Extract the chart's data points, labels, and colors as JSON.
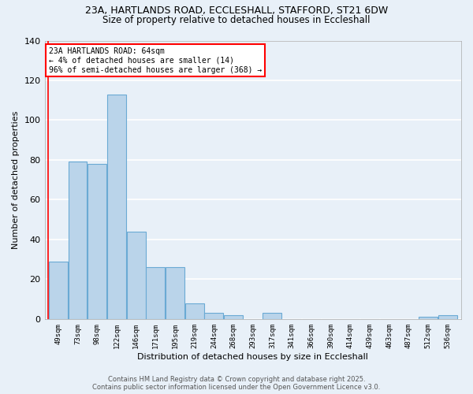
{
  "title_line1": "23A, HARTLANDS ROAD, ECCLESHALL, STAFFORD, ST21 6DW",
  "title_line2": "Size of property relative to detached houses in Eccleshall",
  "xlabel": "Distribution of detached houses by size in Eccleshall",
  "ylabel": "Number of detached properties",
  "annotation_text": "23A HARTLANDS ROAD: 64sqm\n← 4% of detached houses are smaller (14)\n96% of semi-detached houses are larger (368) →",
  "footer_line1": "Contains HM Land Registry data © Crown copyright and database right 2025.",
  "footer_line2": "Contains public sector information licensed under the Open Government Licence v3.0.",
  "bar_labels": [
    "49sqm",
    "73sqm",
    "98sqm",
    "122sqm",
    "146sqm",
    "171sqm",
    "195sqm",
    "219sqm",
    "244sqm",
    "268sqm",
    "293sqm",
    "317sqm",
    "341sqm",
    "366sqm",
    "390sqm",
    "414sqm",
    "439sqm",
    "463sqm",
    "487sqm",
    "512sqm",
    "536sqm"
  ],
  "bar_values": [
    29,
    79,
    78,
    113,
    44,
    26,
    26,
    8,
    3,
    2,
    0,
    3,
    0,
    0,
    0,
    0,
    0,
    0,
    0,
    1,
    2
  ],
  "bar_color": "#bad4ea",
  "bar_edge_color": "#6aaad4",
  "background_color": "#e8f0f8",
  "grid_color": "#ffffff",
  "ylim": [
    0,
    140
  ],
  "yticks": [
    0,
    20,
    40,
    60,
    80,
    100,
    120,
    140
  ]
}
